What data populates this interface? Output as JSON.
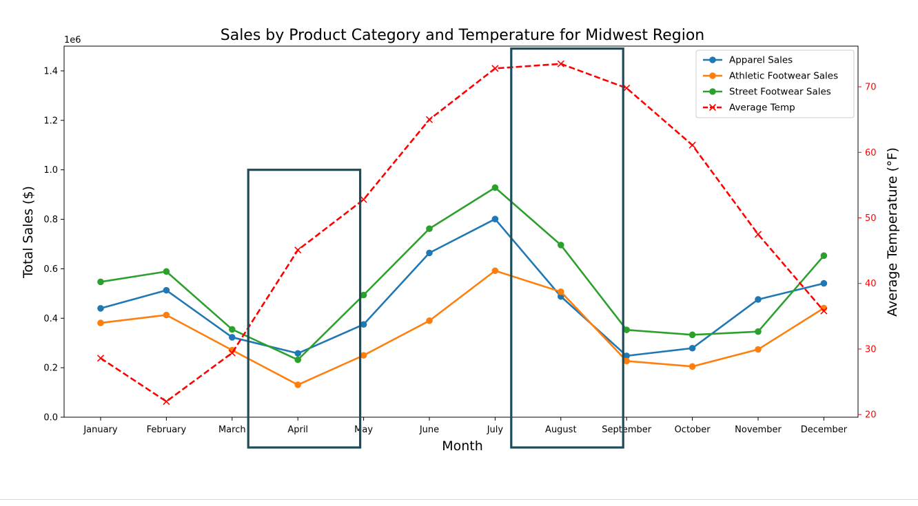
{
  "chart_data": {
    "type": "line",
    "title": "Sales by Product Category and Temperature for Midwest Region",
    "xlabel": "Month",
    "ylabel": "Total Sales ($)",
    "y2label": "Average Temperature (°F)",
    "y_offset_label": "1e6",
    "categories": [
      "January",
      "February",
      "March",
      "April",
      "May",
      "June",
      "July",
      "August",
      "September",
      "October",
      "November",
      "December"
    ],
    "ylim": [
      0,
      1500000
    ],
    "y_ticks": [
      0,
      200000,
      400000,
      600000,
      800000,
      1000000,
      1200000,
      1400000
    ],
    "y_tick_labels": [
      "0.0",
      "0.2",
      "0.4",
      "0.6",
      "0.8",
      "1.0",
      "1.2",
      "1.4"
    ],
    "y2lim": [
      19.6,
      76.2
    ],
    "y2_ticks": [
      20,
      30,
      40,
      50,
      60,
      70
    ],
    "y2_tick_labels": [
      "20",
      "30",
      "40",
      "50",
      "60",
      "70"
    ],
    "grid": false,
    "legend_position": "top-right",
    "series": [
      {
        "name": "Apparel Sales",
        "color": "#1f77b4",
        "axis": "left",
        "marker": "circle",
        "style": "solid",
        "values": [
          440000,
          513000,
          323000,
          258000,
          375000,
          664000,
          801000,
          488000,
          248000,
          279000,
          476000,
          541000
        ]
      },
      {
        "name": "Athletic Footwear Sales",
        "color": "#ff7f0e",
        "axis": "left",
        "marker": "circle",
        "style": "solid",
        "values": [
          381000,
          413000,
          271000,
          131000,
          250000,
          390000,
          592000,
          507000,
          227000,
          205000,
          274000,
          441000
        ]
      },
      {
        "name": "Street Footwear Sales",
        "color": "#2ca02c",
        "axis": "left",
        "marker": "circle",
        "style": "solid",
        "values": [
          547000,
          589000,
          355000,
          232000,
          494000,
          762000,
          928000,
          696000,
          353000,
          333000,
          346000,
          653000
        ]
      },
      {
        "name": "Average Temp",
        "color": "#ff0000",
        "axis": "right",
        "marker": "x",
        "style": "dashed",
        "values": [
          28.6,
          22.0,
          29.4,
          45.1,
          52.8,
          65.0,
          72.8,
          73.5,
          69.8,
          61.1,
          47.5,
          35.8
        ]
      }
    ],
    "highlight_boxes": [
      {
        "from": "April",
        "to": "May",
        "top_value": 1000000,
        "color": "#1b4d5c"
      },
      {
        "from": "August",
        "to": "September",
        "top_value": 1490000,
        "color": "#1b4d5c"
      }
    ]
  }
}
